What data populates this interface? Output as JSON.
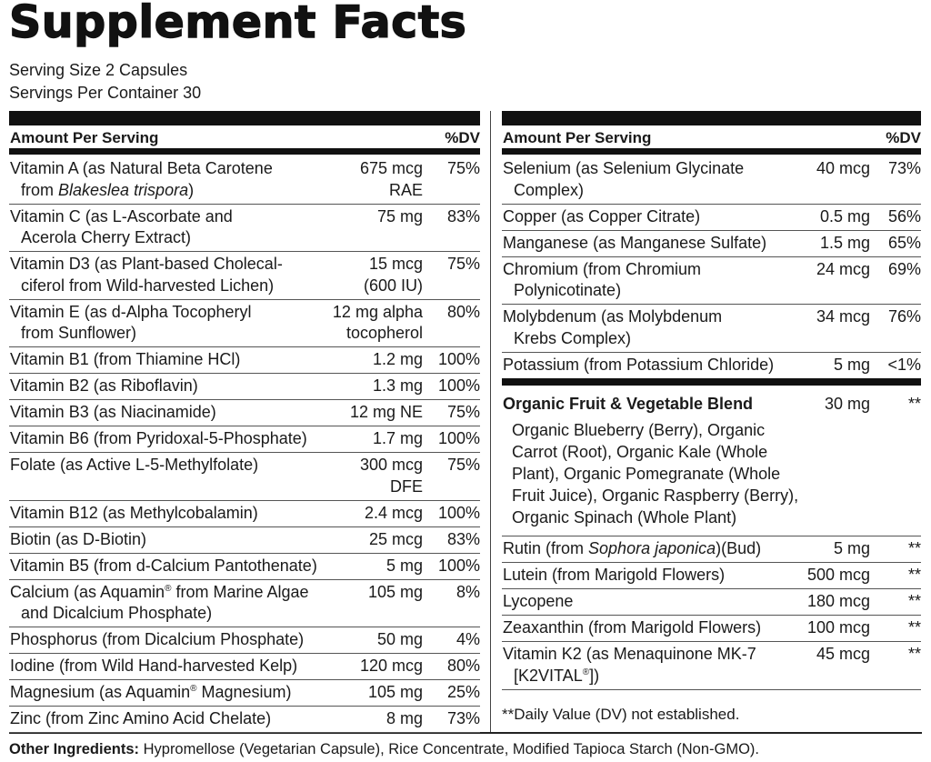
{
  "title": "Supplement Facts",
  "serving_size": "Serving Size 2 Capsules",
  "servings_per_container": "Servings Per Container 30",
  "left_panel": {
    "header": {
      "amount": "Amount Per Serving",
      "dv": "%DV"
    },
    "rows": [
      {
        "name": [
          "Vitamin A (as Natural Beta Carotene",
          [
            "from ",
            {
              "text": "Blakeslea trispora",
              "italic": true
            },
            ")"
          ]
        ],
        "amount": [
          "675 mcg",
          "RAE"
        ],
        "dv": "75%"
      },
      {
        "name": [
          "Vitamin C (as L-Ascorbate and",
          "Acerola Cherry Extract)"
        ],
        "amount": [
          "75 mg"
        ],
        "dv": "83%"
      },
      {
        "name": [
          "Vitamin D3 (as Plant-based Cholecal-",
          "ciferol from Wild-harvested Lichen)"
        ],
        "amount": [
          "15 mcg",
          "(600 IU)"
        ],
        "dv": "75%"
      },
      {
        "name": [
          "Vitamin E (as d-Alpha Tocopheryl",
          "from Sunflower)"
        ],
        "amount": [
          "12 mg alpha",
          "tocopherol"
        ],
        "dv": "80%"
      },
      {
        "name": [
          "Vitamin B1 (from Thiamine HCl)"
        ],
        "amount": [
          "1.2 mg"
        ],
        "dv": "100%"
      },
      {
        "name": [
          "Vitamin B2 (as Riboflavin)"
        ],
        "amount": [
          "1.3 mg"
        ],
        "dv": "100%"
      },
      {
        "name": [
          "Vitamin B3 (as Niacinamide)"
        ],
        "amount": [
          "12 mg NE"
        ],
        "dv": "75%"
      },
      {
        "name": [
          "Vitamin B6 (from Pyridoxal-5-Phosphate)"
        ],
        "amount": [
          "1.7 mg"
        ],
        "dv": "100%"
      },
      {
        "name": [
          "Folate (as Active L-5-Methylfolate)"
        ],
        "amount": [
          "300 mcg",
          "DFE"
        ],
        "dv": "75%"
      },
      {
        "name": [
          "Vitamin B12 (as Methylcobalamin)"
        ],
        "amount": [
          "2.4 mcg"
        ],
        "dv": "100%"
      },
      {
        "name": [
          "Biotin (as D-Biotin)"
        ],
        "amount": [
          "25 mcg"
        ],
        "dv": "83%"
      },
      {
        "name": [
          "Vitamin B5 (from d-Calcium Pantothenate)"
        ],
        "amount": [
          "5 mg"
        ],
        "dv": "100%"
      },
      {
        "name": [
          [
            "Calcium (as Aquamin",
            {
              "text": "®",
              "sup": true
            },
            " from Marine Algae"
          ],
          "and Dicalcium Phosphate)"
        ],
        "amount": [
          "105 mg"
        ],
        "dv": "8%"
      },
      {
        "name": [
          "Phosphorus (from Dicalcium Phosphate)"
        ],
        "amount": [
          "50 mg"
        ],
        "dv": "4%"
      },
      {
        "name": [
          "Iodine (from Wild Hand-harvested Kelp)"
        ],
        "amount": [
          "120 mcg"
        ],
        "dv": "80%"
      },
      {
        "name": [
          [
            "Magnesium (as Aquamin",
            {
              "text": "®",
              "sup": true
            },
            " Magnesium)"
          ]
        ],
        "amount": [
          "105 mg"
        ],
        "dv": "25%"
      },
      {
        "name": [
          "Zinc (from Zinc Amino Acid Chelate)"
        ],
        "amount": [
          "8 mg"
        ],
        "dv": "73%"
      }
    ]
  },
  "right_panel": {
    "header": {
      "amount": "Amount Per Serving",
      "dv": "%DV"
    },
    "rows": [
      {
        "name": [
          "Selenium (as Selenium Glycinate",
          "Complex)"
        ],
        "amount": [
          "40 mcg"
        ],
        "dv": "73%"
      },
      {
        "name": [
          "Copper (as Copper Citrate)"
        ],
        "amount": [
          "0.5 mg"
        ],
        "dv": "56%"
      },
      {
        "name": [
          "Manganese (as Manganese Sulfate)"
        ],
        "amount": [
          "1.5 mg"
        ],
        "dv": "65%"
      },
      {
        "name": [
          "Chromium (from Chromium",
          "Polynicotinate)"
        ],
        "amount": [
          "24 mcg"
        ],
        "dv": "69%"
      },
      {
        "name": [
          "Molybdenum (as Molybdenum",
          "Krebs Complex)"
        ],
        "amount": [
          "34 mcg"
        ],
        "dv": "76%"
      },
      {
        "name": [
          "Potassium (from Potassium Chloride)"
        ],
        "amount": [
          "5 mg"
        ],
        "dv": "<1%"
      }
    ],
    "blend": {
      "name": "Organic Fruit & Vegetable Blend",
      "amount": "30 mg",
      "dv": "**",
      "ingredients": [
        "Organic Blueberry (Berry), Organic",
        "Carrot (Root), Organic Kale (Whole",
        "Plant), Organic Pomegranate (Whole",
        "Fruit Juice), Organic Raspberry (Berry),",
        "Organic Spinach (Whole Plant)"
      ]
    },
    "extra_rows": [
      {
        "name": [
          [
            "Rutin (from ",
            {
              "text": "Sophora japonica",
              "italic": true
            },
            ")(Bud)"
          ]
        ],
        "amount": [
          "5 mg"
        ],
        "dv": "**"
      },
      {
        "name": [
          "Lutein (from Marigold Flowers)"
        ],
        "amount": [
          "500 mcg"
        ],
        "dv": "**"
      },
      {
        "name": [
          "Lycopene"
        ],
        "amount": [
          "180 mcg"
        ],
        "dv": "**"
      },
      {
        "name": [
          "Zeaxanthin (from Marigold Flowers)"
        ],
        "amount": [
          "100 mcg"
        ],
        "dv": "**"
      },
      {
        "name": [
          "Vitamin K2 (as Menaquinone MK-7",
          [
            "[K2VITAL",
            {
              "text": "®",
              "sup": true
            },
            "])"
          ]
        ],
        "amount": [
          "45 mcg"
        ],
        "dv": "**"
      }
    ],
    "footnote": "**Daily Value (DV) not established."
  },
  "other_ingredients": {
    "label": "Other Ingredients:",
    "text": " Hypromellose (Vegetarian Capsule), Rice Concentrate, Modified Tapioca Starch (Non-GMO)."
  }
}
